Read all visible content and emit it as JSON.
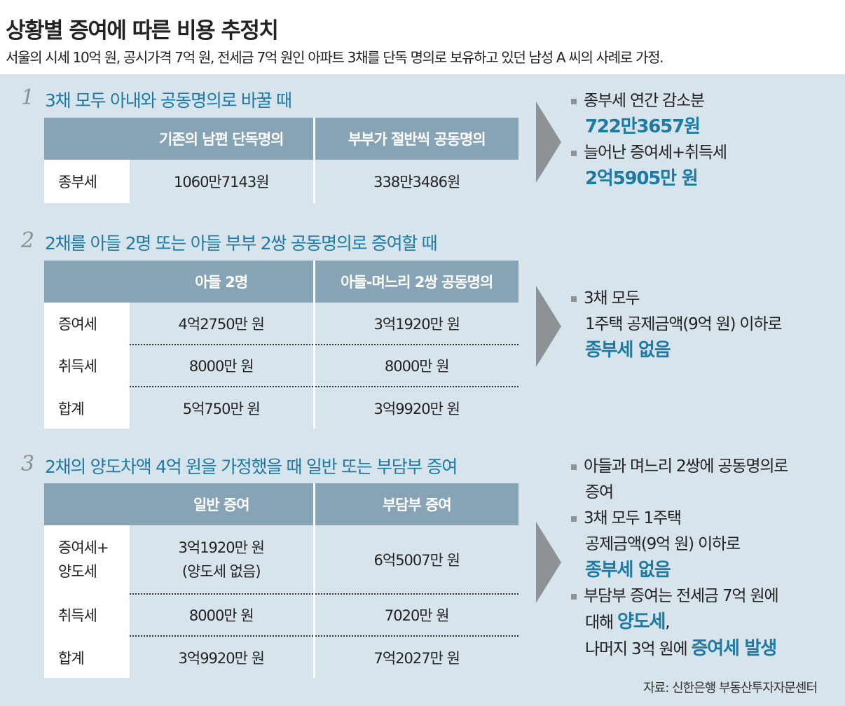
{
  "title": "상황별 증여에 따른 비용 추정치",
  "subtitle": "서울의 시세 10억 원, 공시가격 7억 원, 전세금 7억 원인 아파트 3채를 단독 명의로 보유하고 있던 남성 A 씨의 사례로 가정.",
  "sections": [
    {
      "num": "1",
      "title": "3채 모두 아내와 공동명의로 바꿀 때",
      "headers": [
        "기존의 남편 단독명의",
        "부부가 절반씩 공동명의"
      ],
      "rows": [
        {
          "label": "종부세",
          "v1": "1060만7143원",
          "v2": "338만3486원"
        }
      ]
    },
    {
      "num": "2",
      "title": "2채를 아들 2명 또는 아들 부부 2쌍 공동명의로 증여할 때",
      "headers": [
        "아들 2명",
        "아들-며느리 2쌍 공동명의"
      ],
      "rows": [
        {
          "label": "증여세",
          "v1": "4억2750만 원",
          "v2": "3억1920만 원"
        },
        {
          "label": "취득세",
          "v1": "8000만 원",
          "v2": "8000만 원"
        },
        {
          "label": "합계",
          "v1": "5억750만 원",
          "v2": "3억9920만 원"
        }
      ]
    },
    {
      "num": "3",
      "title": "2채의 양도차액 4억 원을 가정했을 때 일반 또는 부담부 증여",
      "headers": [
        "일반 증여",
        "부담부 증여"
      ],
      "rows": [
        {
          "label": "증여세+",
          "label2": "양도세",
          "v1": "3억1920만 원",
          "v1b": "(양도세 없음)",
          "v2": "6억5007만 원"
        },
        {
          "label": "취득세",
          "v1": "8000만 원",
          "v2": "7020만 원"
        },
        {
          "label": "합계",
          "v1": "3억9920만 원",
          "v2": "7억2027만 원"
        }
      ]
    }
  ],
  "notes1": {
    "l1": "종부세 연간 감소분",
    "l2": "722만3657원",
    "l3": "늘어난 증여세+취득세",
    "l4": "2억5905만 원"
  },
  "notes2": {
    "l1": "3채 모두",
    "l2": "1주택 공제금액(9억 원) 이하로",
    "l3": "종부세 없음"
  },
  "notes3": {
    "l1": "아들과 며느리 2쌍에 공동명의로",
    "l2": "증여",
    "l3": "3채 모두 1주택",
    "l4": "공제금액(9억 원) 이하로",
    "l5": "종부세 없음",
    "l6": "부담부 증여는 전세금 7억 원에",
    "l7a": "대해 ",
    "l7b": "양도세",
    "l7c": ",",
    "l8a": "나머지 3억 원에 ",
    "l8b": "증여세 발생"
  },
  "source": "자료: 신한은행 부동산투자자문센터",
  "colors": {
    "accent": "#1c7aa3",
    "header": "#87a3b6",
    "panel": "#d8e4ec",
    "arrow": "#8d9296"
  }
}
